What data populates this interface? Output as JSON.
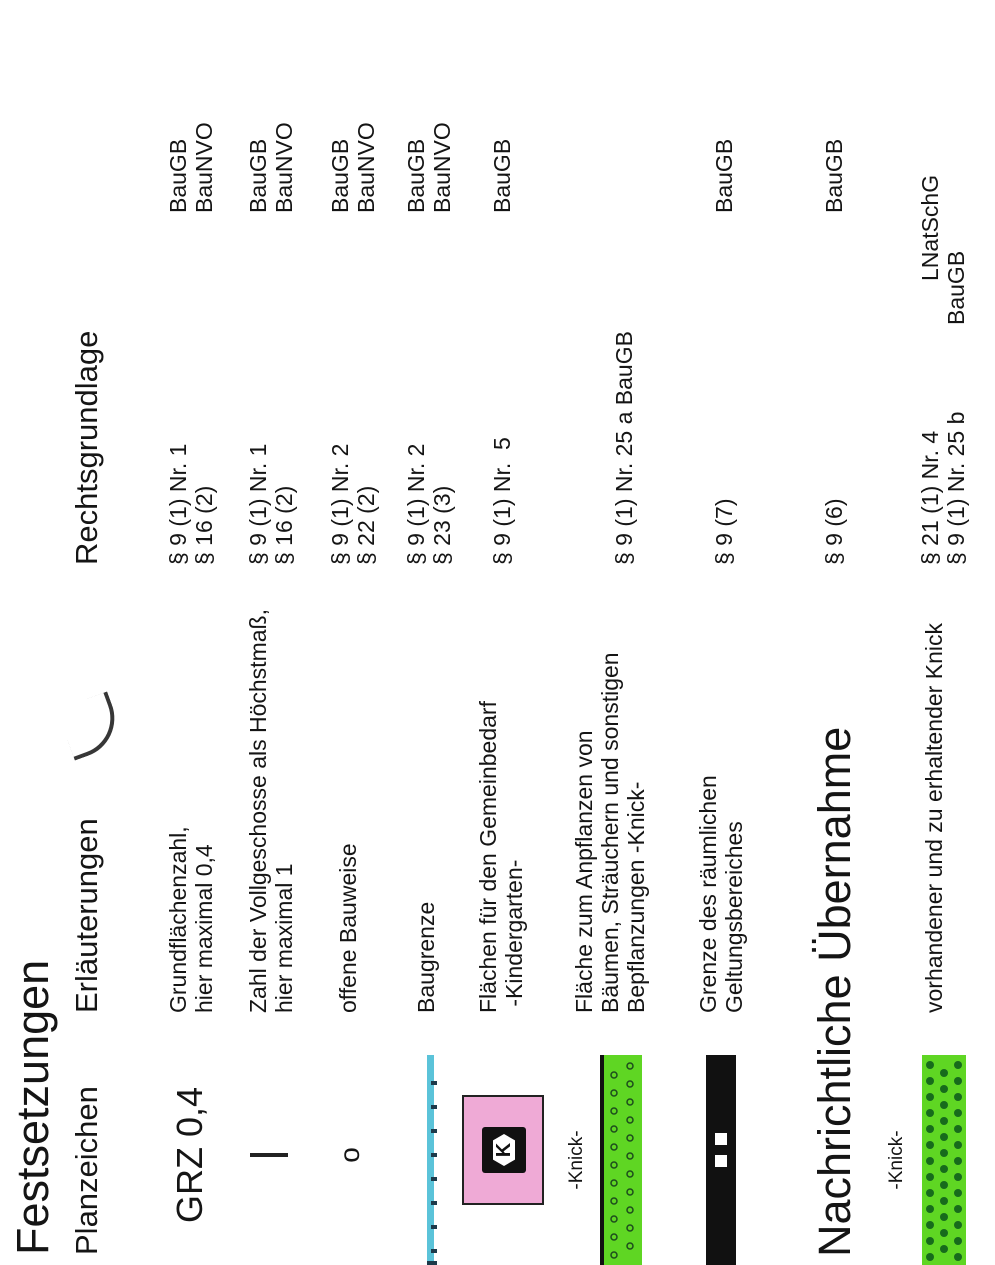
{
  "sections": {
    "festsetzungen": "Festsetzungen",
    "nachrichtliche": "Nachrichtliche Übernahme"
  },
  "headers": {
    "planzeichen": "Planzeichen",
    "erlaeuterungen": "Erläuterungen",
    "rechtsgrundlage": "Rechtsgrundlage"
  },
  "rows": [
    {
      "symbol": "GRZ 0,4",
      "desc": [
        "Grundflächenzahl,",
        "hier maximal 0,4"
      ],
      "law": [
        "§ 9 (1) Nr. 1",
        "§ 16 (2)"
      ],
      "code": [
        "BauGB",
        "BauNVO"
      ]
    },
    {
      "symbol": "I",
      "desc": [
        "Zahl der Vollgeschosse als Höchstmaß,",
        "hier maximal 1"
      ],
      "law": [
        "§ 9 (1) Nr. 1",
        "§ 16 (2)"
      ],
      "code": [
        "BauGB",
        "BauNVO"
      ]
    },
    {
      "symbol": "o",
      "desc": [
        "offene Bauweise"
      ],
      "law": [
        "§ 9 (1) Nr. 2",
        "§ 22 (2)"
      ],
      "code": [
        "BauGB",
        "BauNVO"
      ]
    },
    {
      "symbol": "",
      "desc": [
        "Baugrenze"
      ],
      "law": [
        "§ 9 (1) Nr. 2",
        "§ 23 (3)"
      ],
      "code": [
        "BauGB",
        "BauNVO"
      ]
    },
    {
      "symbol": "K",
      "desc": [
        "Flächen für den Gemeinbedarf",
        " -Kindergarten-"
      ],
      "law": [
        "§ 9 (1) Nr.  5"
      ],
      "code": [
        "BauGB"
      ]
    },
    {
      "symbol": "-Knick-",
      "desc": [
        "Fläche zum Anpflanzen von",
        "Bäumen, Sträuchern und sonstigen",
        "Bepflanzungen -Knick-"
      ],
      "law": [
        "§ 9 (1) Nr. 25 a BauGB"
      ],
      "code": []
    },
    {
      "symbol": "",
      "desc": [
        "Grenze des räumlichen",
        "Geltungsbereiches"
      ],
      "law": [
        "§ 9 (7)"
      ],
      "code": [
        "BauGB"
      ]
    },
    {
      "symbol": "",
      "desc": [],
      "law": [
        "§ 9 (6)"
      ],
      "code": [
        "BauGB"
      ]
    },
    {
      "symbol": "-Knick-",
      "desc": [
        "vorhandener und zu erhaltender Knick"
      ],
      "law": [
        "§ 21 (1) Nr. 4",
        "§ 9 (1) Nr. 25 b"
      ],
      "code": [
        "LNatSchG",
        "BauGB"
      ]
    }
  ],
  "colors": {
    "baugrenze_line": "#5bc3d9",
    "gemeinbedarf_fill": "#efaad6",
    "knick_green": "#5fd623",
    "knick_dots_dark": "#176b1c",
    "black": "#111111"
  }
}
